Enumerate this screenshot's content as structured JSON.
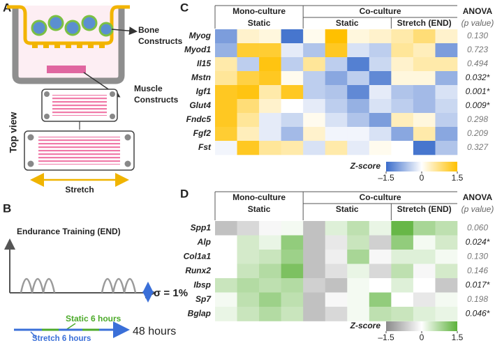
{
  "panel_a": {
    "label": "A",
    "bone_label": [
      "Bone",
      "Constructs"
    ],
    "muscle_label": [
      "Muscle",
      "Constructs"
    ],
    "top_view": "Top view",
    "stretch": "Stretch"
  },
  "panel_b": {
    "label": "B",
    "title": "Endurance Training (END)",
    "sigma": "σ = 1%",
    "static": "Static 6 hours",
    "stretch": "Stretch 6 hours",
    "duration": "48 hours"
  },
  "chart_data": [
    {
      "type": "heatmap",
      "panel": "C",
      "groups": [
        "Mono-culture",
        "Co-culture"
      ],
      "subgroups": [
        "Static",
        "Static",
        "Stretch (END)"
      ],
      "stat_title": "ANOVA",
      "stat_subtitle": "(p value)",
      "rows": [
        "Myog",
        "Myod1",
        "Il15",
        "Mstn",
        "Igf1",
        "Glut4",
        "Fndc5",
        "Fgf2",
        "Fst"
      ],
      "values": [
        [
          -1.0,
          0.3,
          0.2,
          -1.4,
          0.1,
          1.5,
          0.2,
          0.3,
          0.5,
          0.8,
          0.3
        ],
        [
          -0.8,
          1.2,
          1.2,
          -0.2,
          -0.6,
          1.3,
          -0.3,
          -0.5,
          0.6,
          0.4,
          -1.0
        ],
        [
          0.5,
          -0.5,
          1.4,
          -0.5,
          0.6,
          -0.5,
          -1.3,
          -0.4,
          0.3,
          0.5,
          0.5
        ],
        [
          0.6,
          1.1,
          1.3,
          0.1,
          -0.5,
          -0.9,
          -0.5,
          -1.2,
          0.2,
          0.2,
          -0.8
        ],
        [
          1.3,
          1.4,
          0.5,
          1.3,
          -0.5,
          -0.6,
          -1.2,
          -0.2,
          -0.6,
          -0.7,
          -0.3
        ],
        [
          1.3,
          0.8,
          0.3,
          0.0,
          -0.2,
          -0.5,
          -0.8,
          -0.3,
          -0.5,
          -0.7,
          -0.4
        ],
        [
          1.3,
          0.6,
          -0.2,
          -0.4,
          0.1,
          -0.3,
          -0.6,
          -1.0,
          0.4,
          0.2,
          -0.5
        ],
        [
          1.2,
          0.4,
          -0.2,
          -0.7,
          0.3,
          -0.1,
          -0.1,
          -0.3,
          -0.9,
          0.5,
          -0.9
        ],
        [
          -0.1,
          1.3,
          0.6,
          0.5,
          -0.3,
          0.5,
          -0.2,
          0.1,
          0.0,
          -1.4,
          -0.6
        ]
      ],
      "p_values": [
        "0.130",
        "0.723",
        "0.494",
        "0.032*",
        "0.001*",
        "0.009*",
        "0.298",
        "0.209",
        "0.327"
      ],
      "colorbar_title": "Z-score",
      "colormap": [
        "#3a6ccb",
        "#ffffff",
        "#ffc000"
      ],
      "clim": [
        -1.5,
        1.5
      ],
      "cticks": [
        {
          "value": -1.5,
          "label": "–1.5"
        },
        0,
        1.5
      ]
    },
    {
      "type": "heatmap",
      "panel": "D",
      "groups": [
        "Mono-culture",
        "Co-culture"
      ],
      "subgroups": [
        "Static",
        "Static",
        "Stretch (END)"
      ],
      "stat_title": "ANOVA",
      "stat_subtitle": "(p value)",
      "rows": [
        "Spp1",
        "Alp",
        "Col1a1",
        "Runx2",
        "Ibsp",
        "Sp7",
        "Bglap"
      ],
      "values": [
        [
          -0.8,
          -0.5,
          -0.1,
          0.1,
          -0.8,
          0.3,
          0.6,
          0.2,
          1.4,
          0.8,
          0.6
        ],
        [
          0.0,
          0.4,
          0.2,
          1.0,
          -0.8,
          -0.3,
          0.5,
          -0.6,
          1.0,
          0.1,
          0.4
        ],
        [
          0.0,
          0.4,
          0.5,
          0.9,
          -0.8,
          -0.2,
          0.8,
          -0.1,
          0.3,
          0.3,
          0.1
        ],
        [
          0.0,
          0.5,
          0.7,
          1.2,
          -0.8,
          -0.4,
          0.2,
          -0.5,
          0.6,
          -0.1,
          0.4
        ],
        [
          0.5,
          0.7,
          0.6,
          0.7,
          -0.6,
          -0.8,
          0.1,
          0.0,
          0.3,
          0.0,
          -0.7
        ],
        [
          0.1,
          0.6,
          0.9,
          0.6,
          -0.8,
          -0.1,
          0.1,
          1.0,
          0.0,
          -0.3,
          0.1
        ],
        [
          0.2,
          0.5,
          0.7,
          0.5,
          -0.8,
          -0.5,
          0.1,
          0.6,
          0.5,
          0.3,
          0.2
        ]
      ],
      "p_values": [
        "0.060",
        "0.024*",
        "0.130",
        "0.146",
        "0.017*",
        "0.198",
        "0.046*"
      ],
      "colorbar_title": "Z-score",
      "colormap": [
        "#8a8a8a",
        "#ffffff",
        "#5cb23a"
      ],
      "clim": [
        -1.5,
        1.5
      ],
      "cticks": [
        {
          "value": -1.5,
          "label": "–1.5"
        },
        0,
        1.5
      ]
    }
  ]
}
